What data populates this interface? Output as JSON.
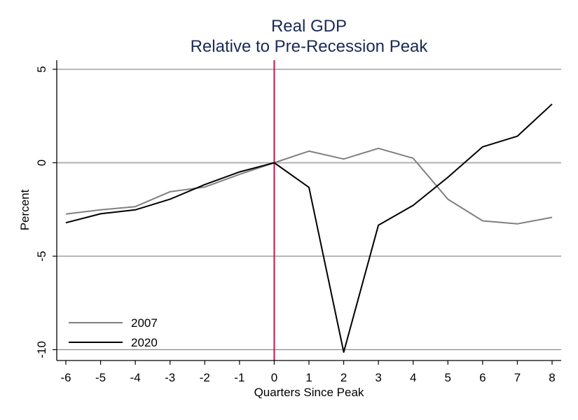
{
  "chart_data": {
    "type": "line",
    "title": "Real GDP",
    "subtitle": "Relative to Pre-Recession Peak",
    "xlabel": "Quarters Since Peak",
    "ylabel": "Percent",
    "x": [
      -6,
      -5,
      -4,
      -3,
      -2,
      -1,
      0,
      1,
      2,
      3,
      4,
      5,
      6,
      7,
      8
    ],
    "xlim": [
      -6.27,
      8.27
    ],
    "ylim": [
      -10.6,
      5.5
    ],
    "x_ticks": [
      "-6",
      "-5",
      "-4",
      "-3",
      "-2",
      "-1",
      "0",
      "1",
      "2",
      "3",
      "4",
      "5",
      "6",
      "7",
      "8"
    ],
    "x_tick_values": [
      -6,
      -5,
      -4,
      -3,
      -2,
      -1,
      0,
      1,
      2,
      3,
      4,
      5,
      6,
      7,
      8
    ],
    "y_ticks": [
      "5",
      "0",
      "-5",
      "-10"
    ],
    "y_tick_values": [
      5,
      0,
      -5,
      -10
    ],
    "grid": true,
    "reference_line": {
      "x": 0,
      "color": "#c0174a"
    },
    "legend_position": "bottom-left",
    "series": [
      {
        "name": "2007",
        "color": "#808080",
        "values": [
          -2.74,
          -2.52,
          -2.35,
          -1.55,
          -1.3,
          -0.62,
          0.0,
          0.62,
          0.2,
          0.77,
          0.24,
          -1.95,
          -3.11,
          -3.27,
          -2.92
        ]
      },
      {
        "name": "2020",
        "color": "#000000",
        "values": [
          -3.21,
          -2.73,
          -2.52,
          -1.95,
          -1.17,
          -0.49,
          0.0,
          -1.32,
          -10.13,
          -3.34,
          -2.28,
          -0.78,
          0.85,
          1.42,
          3.14
        ]
      }
    ]
  }
}
